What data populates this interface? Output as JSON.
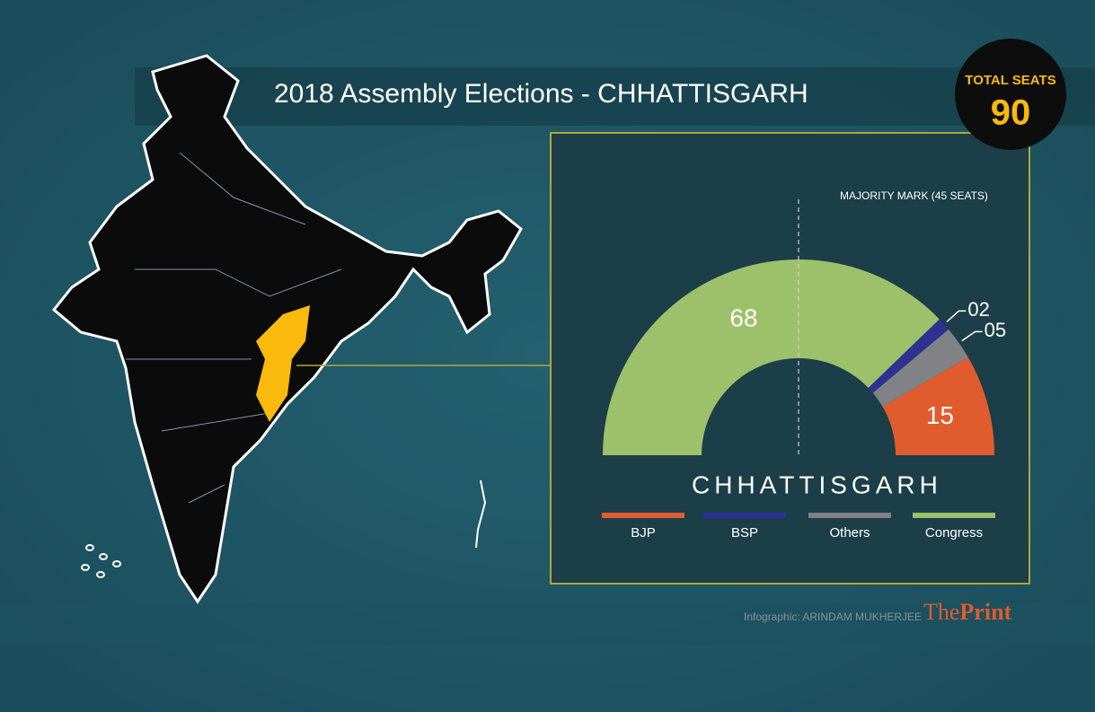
{
  "chart_data": {
    "type": "half-donut",
    "title": "2018 Assembly Elections - CHHATTISGARH",
    "total_label": "TOTAL SEATS",
    "total": 90,
    "majority_label": "MAJORITY MARK (45 SEATS)",
    "majority": 45,
    "chart_label": "CHHATTISGARH",
    "categories": [
      "BJP",
      "BSP",
      "Others",
      "Congress"
    ],
    "values": [
      15,
      2,
      5,
      68
    ],
    "value_labels": [
      "15",
      "02",
      "05",
      "68"
    ],
    "colors": [
      "#e05c2e",
      "#2e3192",
      "#808285",
      "#9dc06b"
    ],
    "credit": "Infographic: ARINDAM MUKHERJEE",
    "brand": [
      "The",
      "Print"
    ]
  }
}
